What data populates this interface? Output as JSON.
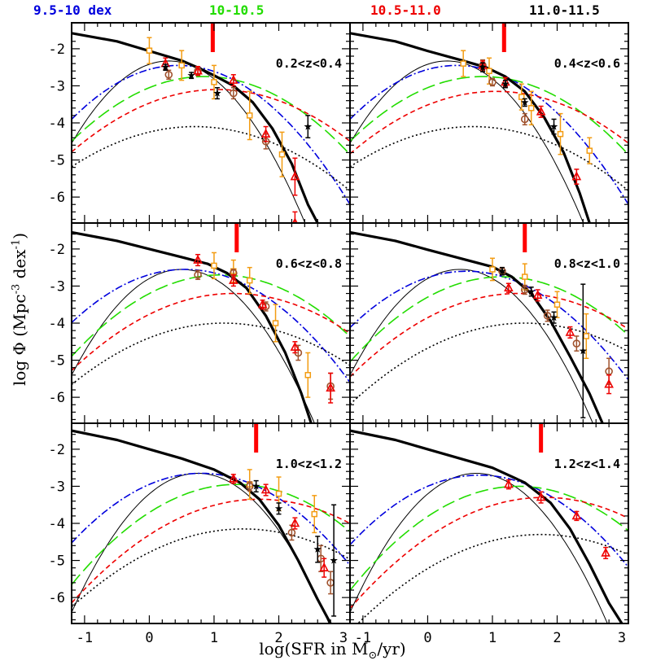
{
  "legend": [
    {
      "label": "9.5-10 dex",
      "color": "#0000dd"
    },
    {
      "label": "10-10.5",
      "color": "#22dd00"
    },
    {
      "label": "10.5-11.0",
      "color": "#ee0000"
    },
    {
      "label": "11.0-11.5",
      "color": "#000000"
    }
  ],
  "axes": {
    "ylabel_prefix": "log Φ   (Mpc",
    "ylabel_exp1": "-3",
    "ylabel_mid": " dex",
    "ylabel_exp2": "-1",
    "ylabel_suffix": ")",
    "xlabel_prefix": "log(SFR in M",
    "xlabel_sub": "⊙",
    "xlabel_suffix": "/yr)"
  },
  "chart_data": {
    "type": "line",
    "xlim": [
      -1.2,
      3.1
    ],
    "ylim": [
      -6.7,
      -1.3
    ],
    "xticks": [
      -1,
      0,
      1,
      2,
      3
    ],
    "yticks": [
      -2,
      -3,
      -4,
      -5,
      -6
    ],
    "panels": [
      {
        "label": "0.2<z<0.4",
        "red_marker_x": 0.98,
        "total": [
          [
            -1.2,
            -1.58
          ],
          [
            -0.5,
            -1.8
          ],
          [
            0.0,
            -2.06
          ],
          [
            0.5,
            -2.32
          ],
          [
            0.8,
            -2.55
          ],
          [
            1.0,
            -2.72
          ],
          [
            1.3,
            -3.0
          ],
          [
            1.6,
            -3.45
          ],
          [
            1.9,
            -4.15
          ],
          [
            2.2,
            -5.1
          ],
          [
            2.45,
            -6.2
          ],
          [
            2.6,
            -6.7
          ]
        ],
        "thin_peak": [
          0.3,
          -2.33
        ],
        "curves": {
          "blue": [
            0.45,
            -2.45,
            0.75
          ],
          "green": [
            0.85,
            -2.75,
            0.85
          ],
          "red": [
            1.05,
            -3.1,
            0.95
          ],
          "black": [
            0.7,
            -4.1,
            1.0
          ]
        },
        "points": {
          "orange": [
            [
              0.0,
              -2.05,
              0.35
            ],
            [
              0.5,
              -2.45,
              0.4
            ],
            [
              1.0,
              -2.9,
              0.45
            ],
            [
              1.55,
              -3.8,
              0.65
            ],
            [
              2.05,
              -4.85,
              0.6
            ]
          ],
          "brown": [
            [
              0.3,
              -2.7,
              0.12
            ],
            [
              0.75,
              -2.6,
              0.1
            ],
            [
              1.3,
              -3.2,
              0.15
            ],
            [
              1.8,
              -4.5,
              0.2
            ]
          ],
          "red": [
            [
              0.25,
              -2.4,
              0.15
            ],
            [
              0.75,
              -2.6,
              0.12
            ],
            [
              1.3,
              -2.85,
              0.15
            ],
            [
              1.8,
              -4.3,
              0.2
            ],
            [
              2.25,
              -5.45,
              0.5
            ],
            [
              2.25,
              -6.7,
              0.3
            ]
          ],
          "black": [
            [
              0.25,
              -2.5,
              0.08
            ],
            [
              0.65,
              -2.72,
              0.08
            ],
            [
              1.05,
              -3.2,
              0.15
            ],
            [
              2.45,
              -4.1,
              0.3
            ]
          ]
        }
      },
      {
        "label": "0.4<z<0.6",
        "red_marker_x": 1.18,
        "total": [
          [
            -1.2,
            -1.58
          ],
          [
            -0.5,
            -1.8
          ],
          [
            0.0,
            -2.06
          ],
          [
            0.5,
            -2.3
          ],
          [
            0.9,
            -2.5
          ],
          [
            1.2,
            -2.75
          ],
          [
            1.5,
            -3.15
          ],
          [
            1.8,
            -3.85
          ],
          [
            2.1,
            -4.8
          ],
          [
            2.35,
            -5.9
          ],
          [
            2.5,
            -6.7
          ]
        ],
        "thin_peak": [
          0.3,
          -2.33
        ],
        "curves": {
          "blue": [
            0.45,
            -2.45,
            0.75
          ],
          "green": [
            0.85,
            -2.75,
            0.85
          ],
          "red": [
            1.05,
            -3.15,
            0.95
          ],
          "black": [
            0.7,
            -4.1,
            1.0
          ]
        },
        "points": {
          "orange": [
            [
              0.55,
              -2.4,
              0.35
            ],
            [
              0.95,
              -2.6,
              0.35
            ],
            [
              1.45,
              -3.3,
              0.35
            ],
            [
              1.6,
              -3.6,
              0.45
            ],
            [
              2.05,
              -4.3,
              0.55
            ],
            [
              2.5,
              -4.75,
              0.35
            ]
          ],
          "brown": [
            [
              0.85,
              -2.45,
              0.15
            ],
            [
              1.0,
              -2.9,
              0.1
            ],
            [
              1.5,
              -3.9,
              0.15
            ]
          ],
          "red": [
            [
              0.85,
              -2.45,
              0.12
            ],
            [
              1.2,
              -2.9,
              0.12
            ],
            [
              1.75,
              -3.7,
              0.15
            ],
            [
              2.3,
              -5.45,
              0.2
            ]
          ],
          "black": [
            [
              0.85,
              -2.5,
              0.12
            ],
            [
              1.2,
              -2.95,
              0.1
            ],
            [
              1.5,
              -3.45,
              0.1
            ],
            [
              1.95,
              -4.1,
              0.2
            ]
          ]
        }
      },
      {
        "label": "0.6<z<0.8",
        "red_marker_x": 1.35,
        "total": [
          [
            -1.2,
            -1.55
          ],
          [
            -0.5,
            -1.78
          ],
          [
            0.0,
            -2.0
          ],
          [
            0.5,
            -2.22
          ],
          [
            0.9,
            -2.4
          ],
          [
            1.2,
            -2.65
          ],
          [
            1.5,
            -3.05
          ],
          [
            1.8,
            -3.8
          ],
          [
            2.1,
            -4.8
          ],
          [
            2.35,
            -5.9
          ],
          [
            2.5,
            -6.7
          ]
        ],
        "thin_peak": [
          0.5,
          -2.55
        ],
        "curves": {
          "blue": [
            0.55,
            -2.55,
            0.8
          ],
          "green": [
            1.1,
            -2.7,
            0.85
          ],
          "red": [
            1.3,
            -3.2,
            0.95
          ],
          "black": [
            1.15,
            -4.0,
            1.0
          ]
        },
        "points": {
          "orange": [
            [
              1.0,
              -2.45,
              0.35
            ],
            [
              1.3,
              -2.6,
              0.3
            ],
            [
              1.55,
              -2.85,
              0.35
            ],
            [
              1.95,
              -4.0,
              0.5
            ],
            [
              2.45,
              -5.4,
              0.6
            ]
          ],
          "brown": [
            [
              0.75,
              -2.7,
              0.12
            ],
            [
              1.3,
              -2.65,
              0.1
            ],
            [
              1.8,
              -3.55,
              0.12
            ],
            [
              2.3,
              -4.8,
              0.2
            ],
            [
              2.8,
              -5.7,
              0.35
            ]
          ],
          "red": [
            [
              0.75,
              -2.3,
              0.15
            ],
            [
              1.3,
              -2.85,
              0.15
            ],
            [
              1.75,
              -3.5,
              0.12
            ],
            [
              2.25,
              -4.65,
              0.15
            ],
            [
              2.8,
              -5.75,
              0.4
            ]
          ],
          "black": []
        }
      },
      {
        "label": "0.8<z<1.0",
        "red_marker_x": 1.5,
        "total": [
          [
            -1.2,
            -1.55
          ],
          [
            -0.5,
            -1.78
          ],
          [
            0.0,
            -2.02
          ],
          [
            0.5,
            -2.25
          ],
          [
            1.0,
            -2.48
          ],
          [
            1.3,
            -2.75
          ],
          [
            1.6,
            -3.2
          ],
          [
            1.9,
            -3.95
          ],
          [
            2.2,
            -4.9
          ],
          [
            2.5,
            -5.9
          ],
          [
            2.7,
            -6.7
          ]
        ],
        "thin_peak": [
          0.5,
          -2.55
        ],
        "curves": {
          "blue": [
            0.6,
            -2.6,
            0.8
          ],
          "green": [
            1.15,
            -2.75,
            0.85
          ],
          "red": [
            1.4,
            -3.2,
            0.95
          ],
          "black": [
            1.5,
            -4.0,
            1.0
          ]
        },
        "points": {
          "orange": [
            [
              1.0,
              -2.55,
              0.3
            ],
            [
              1.5,
              -2.75,
              0.35
            ],
            [
              2.0,
              -3.5,
              0.35
            ],
            [
              2.45,
              -4.35,
              0.6
            ]
          ],
          "brown": [
            [
              1.15,
              -2.6,
              0.1
            ],
            [
              1.5,
              -3.1,
              0.12
            ],
            [
              1.85,
              -3.8,
              0.15
            ],
            [
              2.3,
              -4.55,
              0.2
            ],
            [
              2.8,
              -5.3,
              0.35
            ]
          ],
          "red": [
            [
              1.25,
              -3.05,
              0.12
            ],
            [
              1.7,
              -3.25,
              0.15
            ],
            [
              2.2,
              -4.25,
              0.15
            ],
            [
              2.8,
              -5.65,
              0.25
            ]
          ],
          "black": [
            [
              1.15,
              -2.6,
              0.1
            ],
            [
              1.6,
              -3.15,
              0.12
            ],
            [
              1.95,
              -3.85,
              0.15
            ],
            [
              2.4,
              -4.75,
              1.8
            ]
          ]
        }
      },
      {
        "label": "1.0<z<1.2",
        "red_marker_x": 1.65,
        "total": [
          [
            -1.2,
            -1.5
          ],
          [
            -0.5,
            -1.75
          ],
          [
            0.0,
            -2.0
          ],
          [
            0.5,
            -2.25
          ],
          [
            1.0,
            -2.55
          ],
          [
            1.4,
            -2.9
          ],
          [
            1.7,
            -3.35
          ],
          [
            2.0,
            -4.05
          ],
          [
            2.3,
            -5.0
          ],
          [
            2.6,
            -6.05
          ],
          [
            2.8,
            -6.7
          ]
        ],
        "thin_peak": [
          0.75,
          -2.65
        ],
        "curves": {
          "blue": [
            0.8,
            -2.65,
            0.8
          ],
          "green": [
            1.35,
            -2.95,
            0.85
          ],
          "red": [
            1.7,
            -3.35,
            0.95
          ],
          "black": [
            1.45,
            -4.15,
            1.0
          ]
        },
        "points": {
          "orange": [
            [
              1.55,
              -2.95,
              0.4
            ],
            [
              2.0,
              -3.2,
              0.45
            ],
            [
              2.55,
              -3.75,
              0.5
            ],
            [
              3.2,
              -4.9,
              0.6
            ]
          ],
          "brown": [
            [
              1.55,
              -3.0,
              0.12
            ],
            [
              2.2,
              -4.25,
              0.2
            ],
            [
              2.65,
              -4.95,
              0.35
            ],
            [
              2.8,
              -5.6,
              0.3
            ]
          ],
          "red": [
            [
              1.3,
              -2.8,
              0.12
            ],
            [
              1.8,
              -3.1,
              0.15
            ],
            [
              2.25,
              -4.0,
              0.15
            ],
            [
              2.7,
              -5.2,
              0.25
            ]
          ],
          "black": [
            [
              1.65,
              -3.0,
              0.15
            ],
            [
              2.0,
              -3.6,
              0.15
            ],
            [
              2.6,
              -4.7,
              0.35
            ],
            [
              2.85,
              -5.0,
              1.5
            ]
          ]
        }
      },
      {
        "label": "1.2<z<1.4",
        "red_marker_x": 1.75,
        "total": [
          [
            -1.2,
            -1.5
          ],
          [
            -0.5,
            -1.75
          ],
          [
            0.0,
            -2.0
          ],
          [
            0.5,
            -2.25
          ],
          [
            1.0,
            -2.5
          ],
          [
            1.5,
            -2.9
          ],
          [
            1.9,
            -3.45
          ],
          [
            2.2,
            -4.15
          ],
          [
            2.5,
            -5.1
          ],
          [
            2.8,
            -6.15
          ],
          [
            3.0,
            -6.7
          ]
        ],
        "thin_peak": [
          0.75,
          -2.65
        ],
        "curves": {
          "blue": [
            0.8,
            -2.7,
            0.8
          ],
          "green": [
            1.4,
            -3.0,
            0.85
          ],
          "red": [
            1.8,
            -3.3,
            0.95
          ],
          "black": [
            1.75,
            -4.3,
            1.0
          ]
        },
        "points": {
          "orange": [],
          "brown": [],
          "red": [
            [
              1.25,
              -2.95,
              0.12
            ],
            [
              1.75,
              -3.3,
              0.15
            ],
            [
              2.3,
              -3.8,
              0.12
            ],
            [
              2.75,
              -4.8,
              0.15
            ]
          ],
          "black": []
        }
      }
    ]
  },
  "colors": {
    "blue": "#0000dd",
    "green": "#22dd00",
    "red": "#ee0000",
    "black": "#000000",
    "orange": "#f39c12",
    "brown": "#a0522d"
  }
}
